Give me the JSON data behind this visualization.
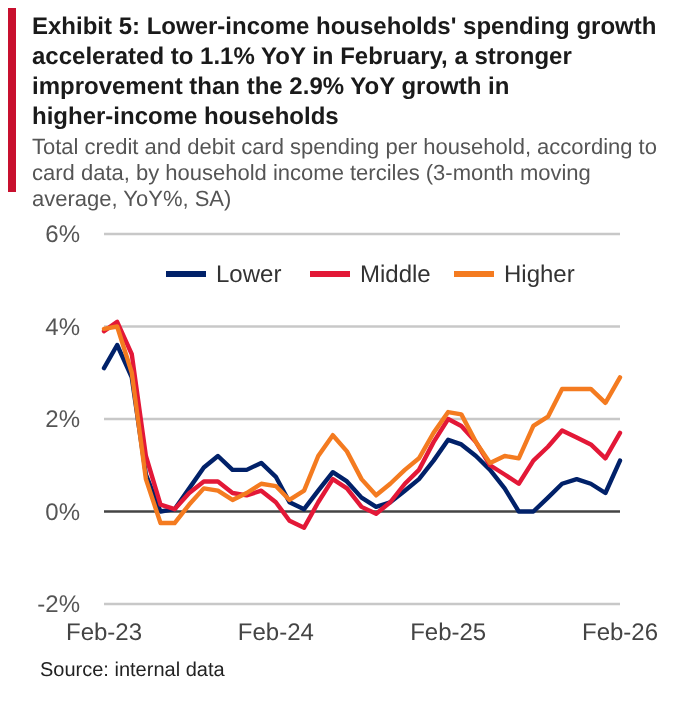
{
  "chart_data": {
    "type": "line",
    "title": "Exhibit 5: Lower-income households' spending growth accelerated to 1.1% YoY in February, a stronger improvement than the 2.9% YoY growth in higher-income households",
    "subtitle": "Total credit and debit card spending per household, according to card data, by household income terciles (3-month moving average, YoY%, SA)",
    "annotations": [
      "Source: internal data"
    ],
    "x": [
      "2023-02",
      "2023-03",
      "2023-04",
      "2023-05",
      "2023-06",
      "2023-07",
      "2023-08",
      "2023-09",
      "2023-10",
      "2023-11",
      "2023-12",
      "2024-01",
      "2024-02",
      "2024-03",
      "2024-04",
      "2024-05",
      "2024-06",
      "2024-07",
      "2024-08",
      "2024-09",
      "2024-10",
      "2024-11",
      "2024-12",
      "2025-01",
      "2025-02",
      "2025-03",
      "2025-04",
      "2025-05",
      "2025-06",
      "2025-07",
      "2025-08",
      "2025-09",
      "2025-10",
      "2025-11",
      "2025-12",
      "2026-01",
      "2026-02"
    ],
    "series": [
      {
        "name": "Lower",
        "color": "#012169",
        "values": [
          3.1,
          3.6,
          2.9,
          0.8,
          0.0,
          0.05,
          0.5,
          0.95,
          1.2,
          0.9,
          0.9,
          1.05,
          0.75,
          0.2,
          0.05,
          0.45,
          0.85,
          0.65,
          0.3,
          0.1,
          0.2,
          0.45,
          0.7,
          1.1,
          1.55,
          1.45,
          1.2,
          0.9,
          0.5,
          0.0,
          0.0,
          0.3,
          0.6,
          0.7,
          0.6,
          0.4,
          1.1
        ]
      },
      {
        "name": "Middle",
        "color": "#e31837",
        "values": [
          3.9,
          4.1,
          3.4,
          1.2,
          0.15,
          0.05,
          0.4,
          0.65,
          0.65,
          0.4,
          0.35,
          0.45,
          0.2,
          -0.2,
          -0.35,
          0.2,
          0.7,
          0.5,
          0.1,
          -0.05,
          0.2,
          0.6,
          0.9,
          1.5,
          2.0,
          1.85,
          1.5,
          1.0,
          0.8,
          0.6,
          1.1,
          1.4,
          1.75,
          1.6,
          1.45,
          1.15,
          1.7
        ]
      },
      {
        "name": "Higher",
        "color": "#f47b20",
        "values": [
          3.95,
          4.0,
          3.0,
          0.7,
          -0.25,
          -0.25,
          0.15,
          0.5,
          0.45,
          0.25,
          0.4,
          0.6,
          0.55,
          0.25,
          0.45,
          1.2,
          1.65,
          1.3,
          0.7,
          0.35,
          0.6,
          0.9,
          1.15,
          1.7,
          2.15,
          2.1,
          1.5,
          1.05,
          1.2,
          1.15,
          1.85,
          2.05,
          2.65,
          2.65,
          2.65,
          2.35,
          2.9
        ]
      }
    ],
    "xlim": [
      "2023-02",
      "2026-02"
    ],
    "xticks": [
      {
        "value": "2023-02",
        "label": "Feb-23"
      },
      {
        "value": "2024-02",
        "label": "Feb-24"
      },
      {
        "value": "2025-02",
        "label": "Feb-25"
      },
      {
        "value": "2026-02",
        "label": "Feb-26"
      }
    ],
    "ylim": [
      -2,
      6
    ],
    "yticks": [
      {
        "value": -2,
        "label": "-2%"
      },
      {
        "value": 0,
        "label": "0%"
      },
      {
        "value": 2,
        "label": "2%"
      },
      {
        "value": 4,
        "label": "4%"
      },
      {
        "value": 6,
        "label": "6%"
      }
    ],
    "grid": "y",
    "legend": "top",
    "marker": "none",
    "line_style": "solid"
  }
}
